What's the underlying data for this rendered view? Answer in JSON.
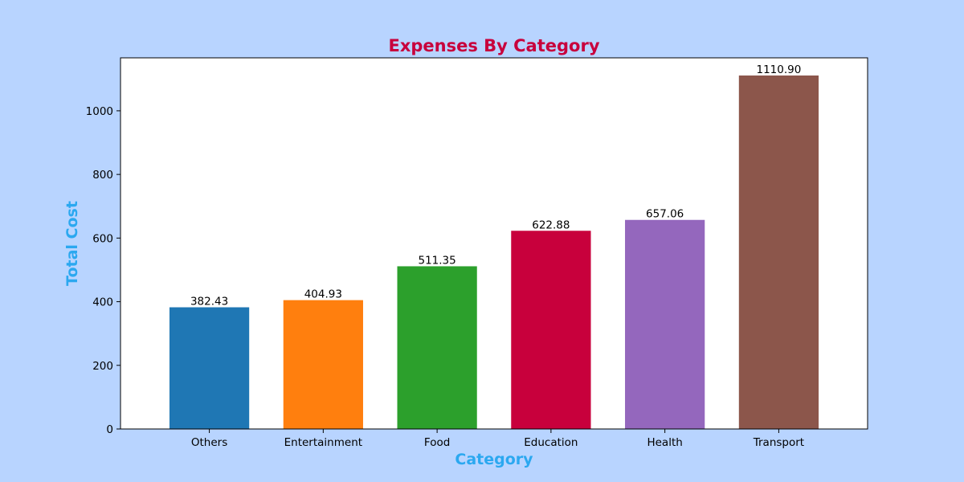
{
  "figure": {
    "background": "#b8d4ff",
    "plot_background": "#ffffff"
  },
  "chart_data": {
    "type": "bar",
    "title": "Expenses By Category",
    "title_color": "#c8003c",
    "xlabel": "Category",
    "ylabel": "Total Cost",
    "axis_label_color": "#2ba8f0",
    "categories": [
      "Others",
      "Entertainment",
      "Food",
      "Education",
      "Health",
      "Transport"
    ],
    "values": [
      382.43,
      404.93,
      511.35,
      622.88,
      657.06,
      1110.9
    ],
    "value_labels": [
      "382.43",
      "404.93",
      "511.35",
      "622.88",
      "657.06",
      "1110.90"
    ],
    "colors": [
      "#1f77b4",
      "#ff7f0e",
      "#2ca02c",
      "#c8003c",
      "#9467bd",
      "#8c564b"
    ],
    "ylim": [
      0,
      1166.4
    ],
    "yticks": [
      0,
      200,
      400,
      600,
      800,
      1000
    ],
    "ytick_labels": [
      "0",
      "200",
      "400",
      "600",
      "800",
      "1000"
    ],
    "grid": false,
    "legend": "none"
  }
}
